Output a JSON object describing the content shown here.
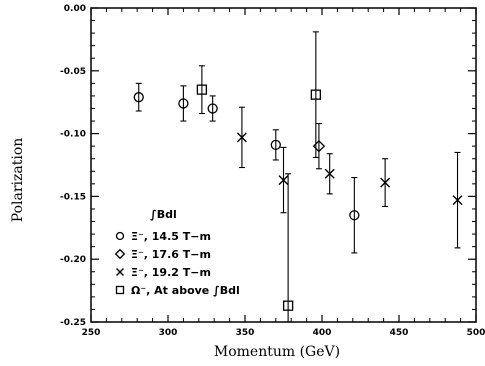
{
  "chart_data": {
    "type": "scatter",
    "xlabel": "Momentum (GeV)",
    "ylabel": "Polarization",
    "xlim": [
      250,
      500
    ],
    "ylim": [
      -0.25,
      0.0
    ],
    "x_ticks": [
      "250",
      "300",
      "350",
      "400",
      "450",
      "500"
    ],
    "y_ticks": [
      "0.00",
      "-0.05",
      "-0.10",
      "-0.15",
      "-0.20",
      "-0.25"
    ],
    "grid": false,
    "legend": {
      "placement": "lower-left",
      "title": "∫Bdl",
      "entries": [
        {
          "marker": "circle",
          "label": "Ξ⁻, 14.5 T−m"
        },
        {
          "marker": "diamond",
          "label": "Ξ⁻, 17.6 T−m"
        },
        {
          "marker": "cross",
          "label": "Ξ⁻, 19.2 T−m"
        },
        {
          "marker": "square",
          "label": "Ω⁻, At above ∫Bdl"
        }
      ]
    },
    "series": [
      {
        "marker": "circle",
        "points": [
          {
            "x": 281,
            "y": -0.071,
            "err": 0.011
          },
          {
            "x": 310,
            "y": -0.076,
            "err": 0.014
          },
          {
            "x": 329,
            "y": -0.08,
            "err": 0.01
          },
          {
            "x": 370,
            "y": -0.109,
            "err": 0.012
          },
          {
            "x": 421,
            "y": -0.165,
            "err": 0.03
          }
        ]
      },
      {
        "marker": "diamond",
        "points": [
          {
            "x": 398,
            "y": -0.11,
            "err": 0.018
          }
        ]
      },
      {
        "marker": "cross",
        "points": [
          {
            "x": 348,
            "y": -0.103,
            "err": 0.024
          },
          {
            "x": 375,
            "y": -0.137,
            "err": 0.026
          },
          {
            "x": 405,
            "y": -0.132,
            "err": 0.016
          },
          {
            "x": 441,
            "y": -0.139,
            "err": 0.019
          },
          {
            "x": 488,
            "y": -0.153,
            "err": 0.038
          }
        ]
      },
      {
        "marker": "square",
        "points": [
          {
            "x": 322,
            "y": -0.065,
            "err": 0.019
          },
          {
            "x": 396,
            "y": -0.069,
            "err": 0.05
          },
          {
            "x": 378,
            "y": -0.237,
            "err": 0.013,
            "err_up": 0.105
          }
        ]
      }
    ]
  }
}
